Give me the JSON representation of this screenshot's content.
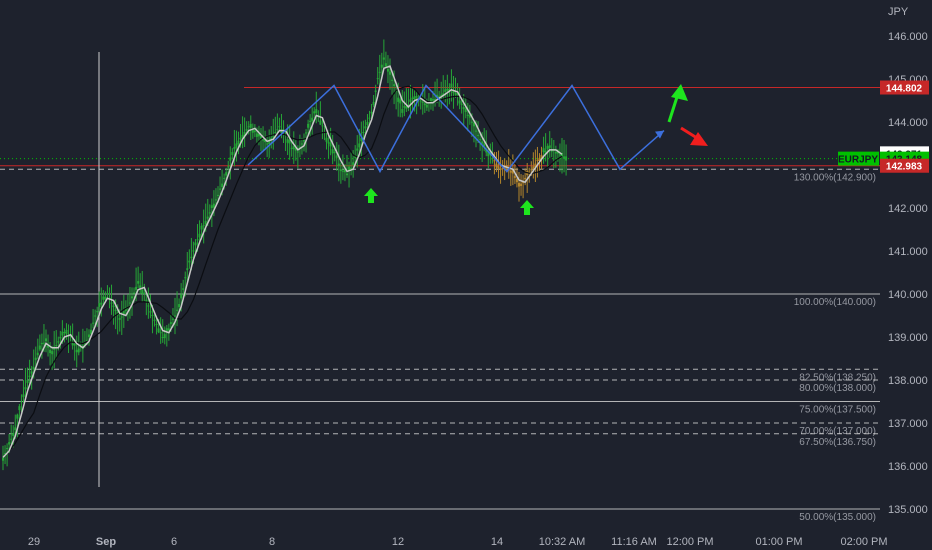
{
  "currency_label": "JPY",
  "symbol_tag": "EURJPY",
  "colors": {
    "background": "#1e222d",
    "candle": "#26a637",
    "candle_recent": "#b4862b",
    "ma_fast": "#c8c8c8",
    "ma_slow": "#0b0d12",
    "pattern": "#3c6fdc",
    "resistance": "#c62828",
    "level_line": "#cfcfcf",
    "up_arrow": "#1ee51e",
    "down_arrow": "#f01e1e",
    "price_tag": "#00c000"
  },
  "icons": {
    "buy_marker": "up-arrow-icon",
    "projection_up": "up-right-arrow-icon",
    "projection_down": "down-right-arrow-icon"
  },
  "chart_data": {
    "type": "line",
    "title": "",
    "xlabel": "",
    "ylabel": "",
    "ylim": [
      134.7,
      146.7
    ],
    "grid": false,
    "y_ticks": [
      "146.000",
      "145.000",
      "144.000",
      "143.000",
      "142.000",
      "141.000",
      "140.000",
      "139.000",
      "138.000",
      "137.000",
      "136.000",
      "135.000"
    ],
    "x_tick_labels": [
      "29",
      "Sep",
      "6",
      "8",
      "12",
      "14",
      "10:32 AM",
      "11:16 AM",
      "12:00 PM",
      "01:00 PM",
      "02:00 PM"
    ],
    "price_markers": [
      {
        "label": "144.802",
        "value": 144.802,
        "style": "red"
      },
      {
        "label": "143.271",
        "value": 143.271,
        "style": "white"
      },
      {
        "label": "143.148",
        "value": 143.148,
        "style": "green"
      },
      {
        "label": "142.983",
        "value": 142.983,
        "style": "red"
      }
    ],
    "levels": [
      {
        "label": "130.00%(142.900)",
        "value": 142.9,
        "dashed": true
      },
      {
        "label": "100.00%(140.000)",
        "value": 140.0,
        "dashed": false
      },
      {
        "label": "82.50%(138.250)",
        "value": 138.25,
        "dashed": true
      },
      {
        "label": "80.00%(138.000)",
        "value": 138.0,
        "dashed": true
      },
      {
        "label": "75.00%(137.500)",
        "value": 137.5,
        "dashed": false
      },
      {
        "label": "70.00%(137.000)",
        "value": 137.0,
        "dashed": true
      },
      {
        "label": "67.50%(136.750)",
        "value": 136.75,
        "dashed": true
      },
      {
        "label": "50.00%(135.000)",
        "value": 135.0,
        "dashed": false
      }
    ],
    "resistance": 144.802,
    "support": 142.983,
    "series": [
      {
        "values": [
          136.2,
          136.5,
          136.9,
          137.5,
          138.0,
          138.3,
          138.8,
          138.9,
          138.6,
          138.9,
          139.1,
          139.0,
          138.7,
          138.8,
          139.0,
          139.5,
          139.8,
          140.0,
          139.7,
          139.4,
          139.6,
          139.9,
          140.3,
          140.0,
          139.6,
          139.3,
          139.0,
          139.2,
          139.5,
          139.9,
          140.6,
          141.0,
          141.4,
          141.7,
          142.0,
          142.3,
          142.7,
          143.1,
          143.5,
          143.7,
          143.9,
          143.8,
          143.6,
          143.5,
          143.7,
          143.9,
          143.7,
          143.4,
          143.3,
          143.6,
          144.0,
          144.3,
          143.9,
          143.5,
          143.3,
          142.9,
          142.8,
          143.0,
          143.5,
          143.9,
          144.2,
          145.0,
          145.5,
          145.1,
          144.7,
          144.3,
          144.4,
          144.6,
          144.5,
          144.4,
          144.5,
          144.6,
          144.7,
          144.8,
          144.6,
          144.3,
          144.1,
          143.8,
          143.5,
          143.3,
          143.1,
          142.9,
          143.0,
          142.8,
          142.5,
          142.7,
          142.9,
          143.1,
          143.3,
          143.4,
          143.3,
          143.2
        ]
      }
    ],
    "projection_path": [
      143.0,
      144.85,
      142.85,
      144.85,
      142.85,
      144.85,
      142.9,
      143.8
    ]
  }
}
